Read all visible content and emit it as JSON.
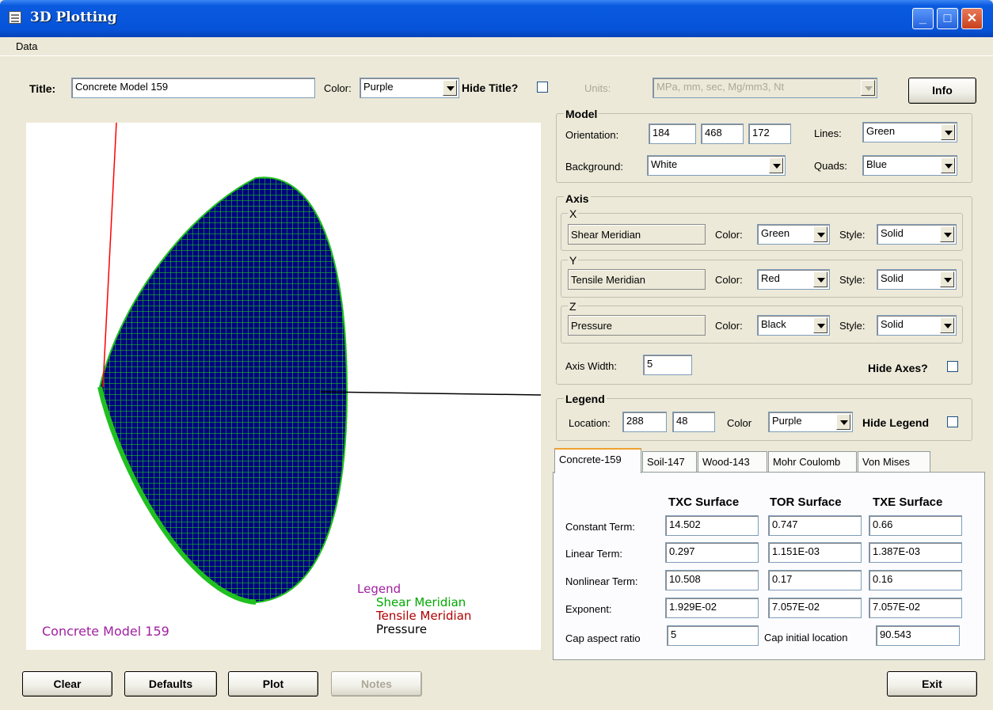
{
  "window": {
    "title": "3D Plotting"
  },
  "menu": {
    "data": "Data"
  },
  "title_row": {
    "title_label": "Title:",
    "title_value": "Concrete Model 159",
    "color_label": "Color:",
    "color_value": "Purple",
    "hide_title_label": "Hide Title?",
    "units_label": "Units:",
    "units_value": "MPa, mm, sec, Mg/mm3, Nt",
    "info_button": "Info"
  },
  "model": {
    "group_title": "Model",
    "orientation_label": "Orientation:",
    "orientation": [
      "184",
      "468",
      "172"
    ],
    "lines_label": "Lines:",
    "lines_value": "Green",
    "background_label": "Background:",
    "background_value": "White",
    "quads_label": "Quads:",
    "quads_value": "Blue"
  },
  "axis": {
    "group_title": "Axis",
    "color_label": "Color:",
    "style_label": "Style:",
    "x": {
      "letter": "X",
      "name": "Shear Meridian",
      "color": "Green",
      "style": "Solid"
    },
    "y": {
      "letter": "Y",
      "name": "Tensile Meridian",
      "color": "Red",
      "style": "Solid"
    },
    "z": {
      "letter": "Z",
      "name": "Pressure",
      "color": "Black",
      "style": "Solid"
    },
    "width_label": "Axis Width:",
    "width_value": "5",
    "hide_axes_label": "Hide Axes?"
  },
  "legend_group": {
    "group_title": "Legend",
    "location_label": "Location:",
    "location": [
      "288",
      "48"
    ],
    "color_label": "Color",
    "color_value": "Purple",
    "hide_label": "Hide Legend"
  },
  "tabs": [
    "Concrete-159",
    "Soil-147",
    "Wood-143",
    "Mohr Coulomb",
    "Von Mises"
  ],
  "params": {
    "headers": [
      "TXC Surface",
      "TOR Surface",
      "TXE Surface"
    ],
    "rows": [
      {
        "label": "Constant Term:",
        "values": [
          "14.502",
          "0.747",
          "0.66"
        ]
      },
      {
        "label": "Linear Term:",
        "values": [
          "0.297",
          "1.151E-03",
          "1.387E-03"
        ]
      },
      {
        "label": "Nonlinear Term:",
        "values": [
          "10.508",
          "0.17",
          "0.16"
        ]
      },
      {
        "label": "Exponent:",
        "values": [
          "1.929E-02",
          "7.057E-02",
          "7.057E-02"
        ]
      }
    ],
    "cap_aspect_label": "Cap aspect ratio",
    "cap_aspect_value": "5",
    "cap_initial_label": "Cap initial location",
    "cap_initial_value": "90.543"
  },
  "plot": {
    "title": "Concrete Model 159",
    "legend_header": "Legend",
    "legend_items": [
      "Shear Meridian",
      "Tensile Meridian",
      "Pressure"
    ],
    "colors": {
      "purple": "#a020a0",
      "green": "#00a800",
      "red": "#b00000",
      "black": "#000000",
      "quad": "#000080",
      "line": "#20c020"
    }
  },
  "buttons": {
    "clear": "Clear",
    "defaults": "Defaults",
    "plot": "Plot",
    "notes": "Notes",
    "exit": "Exit"
  }
}
